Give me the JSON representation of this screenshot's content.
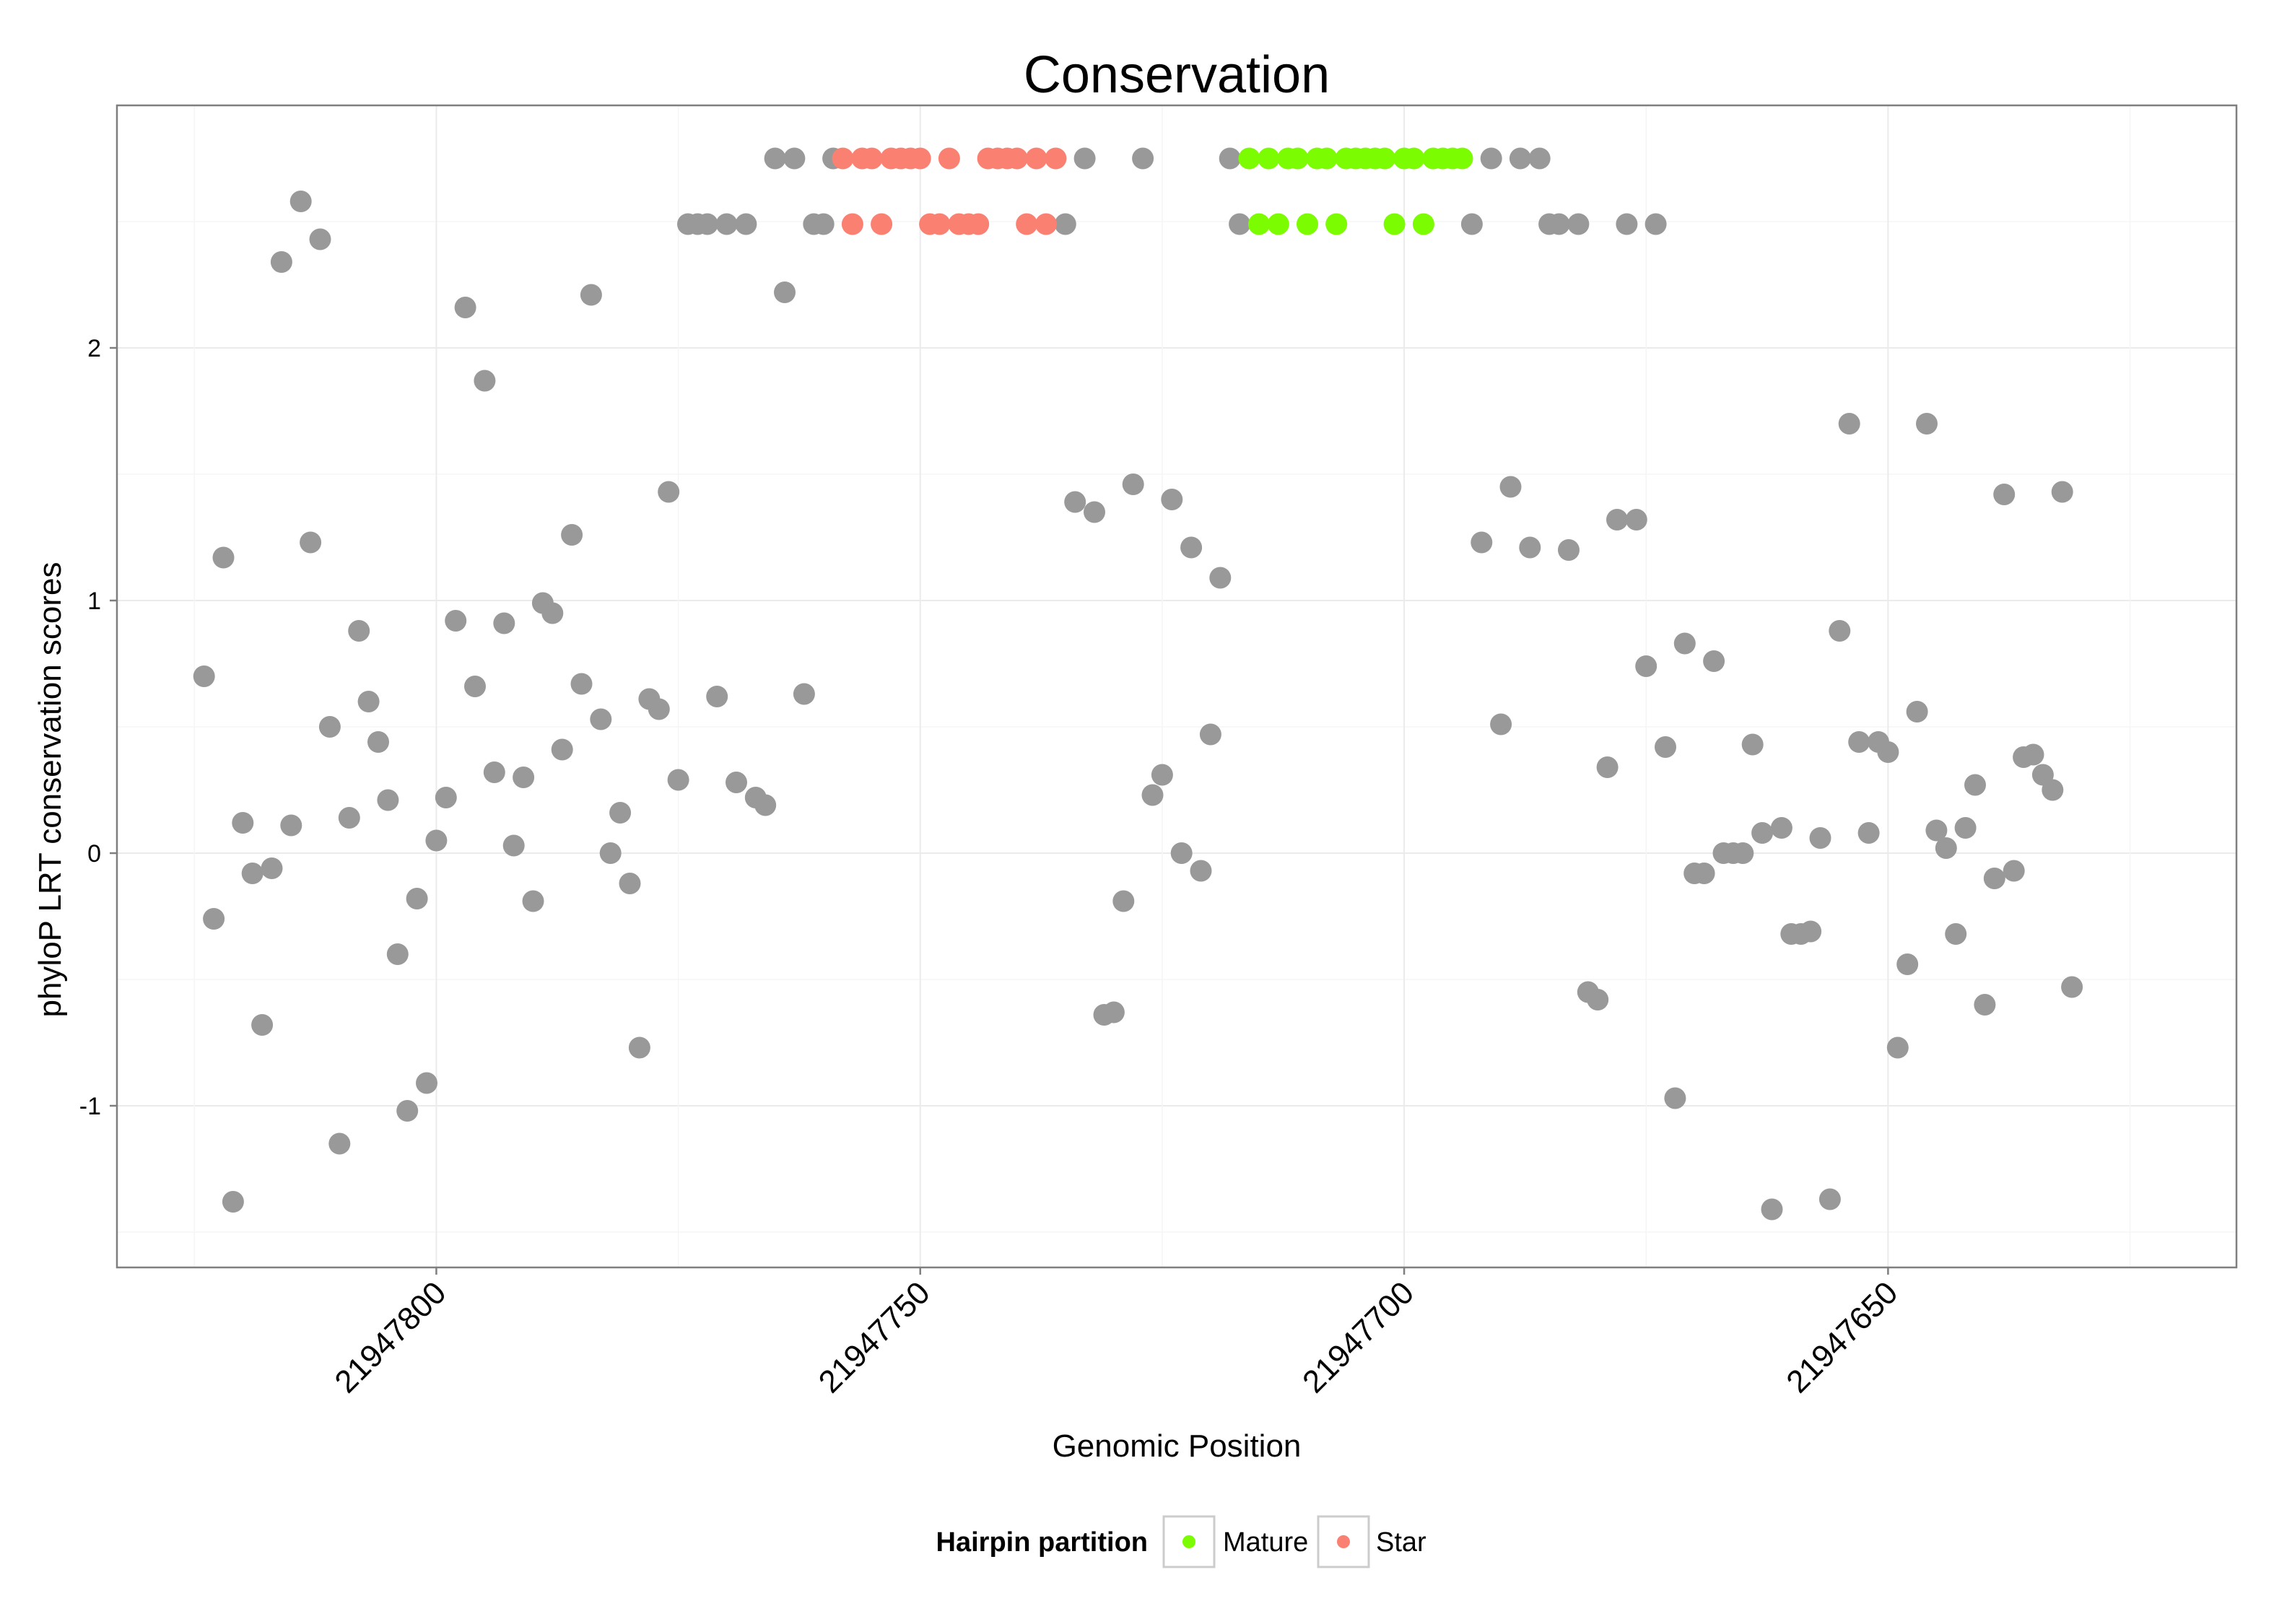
{
  "chart_data": {
    "type": "scatter",
    "title": "Conservation",
    "xlabel": "Genomic Position",
    "ylabel": "phyloP LRT conservation scores",
    "xlim": [
      21947833,
      21947614
    ],
    "ylim": [
      -1.64,
      2.96
    ],
    "x_reversed": true,
    "x_ticks": [
      21947800,
      21947750,
      21947700,
      21947650
    ],
    "x_tick_labels": [
      "21947800",
      "21947750",
      "21947700",
      "21947650"
    ],
    "y_ticks": [
      -1,
      0,
      1,
      2
    ],
    "y_tick_labels": [
      "-1",
      "0",
      "1",
      "2"
    ],
    "grid": true,
    "legend": {
      "title": "Hairpin partition",
      "position": "bottom",
      "entries": [
        {
          "label": "Mature",
          "color": "#7cfc00"
        },
        {
          "label": "Star",
          "color": "#fa8072"
        }
      ]
    },
    "colors": {
      "Other": "#999999",
      "Mature": "#7cfc00",
      "Star": "#fa8072"
    },
    "series": [
      {
        "name": "Other",
        "points": [
          [
            21947824,
            0.7
          ],
          [
            21947823,
            -0.26
          ],
          [
            21947822,
            1.17
          ],
          [
            21947821,
            -1.38
          ],
          [
            21947820,
            0.12
          ],
          [
            21947819,
            -0.08
          ],
          [
            21947818,
            -0.68
          ],
          [
            21947817,
            -0.06
          ],
          [
            21947816,
            2.34
          ],
          [
            21947815,
            0.11
          ],
          [
            21947814,
            2.58
          ],
          [
            21947813,
            1.23
          ],
          [
            21947812,
            2.43
          ],
          [
            21947811,
            0.5
          ],
          [
            21947810,
            -1.15
          ],
          [
            21947809,
            0.14
          ],
          [
            21947808,
            0.88
          ],
          [
            21947807,
            0.6
          ],
          [
            21947806,
            0.44
          ],
          [
            21947805,
            0.21
          ],
          [
            21947804,
            -0.4
          ],
          [
            21947803,
            -1.02
          ],
          [
            21947802,
            -0.18
          ],
          [
            21947801,
            -0.91
          ],
          [
            21947800,
            0.05
          ],
          [
            21947799,
            0.22
          ],
          [
            21947798,
            0.92
          ],
          [
            21947797,
            2.16
          ],
          [
            21947796,
            0.66
          ],
          [
            21947795,
            1.87
          ],
          [
            21947794,
            0.32
          ],
          [
            21947793,
            0.91
          ],
          [
            21947792,
            0.03
          ],
          [
            21947791,
            0.3
          ],
          [
            21947790,
            -0.19
          ],
          [
            21947789,
            0.99
          ],
          [
            21947788,
            0.95
          ],
          [
            21947787,
            0.41
          ],
          [
            21947786,
            1.26
          ],
          [
            21947785,
            0.67
          ],
          [
            21947784,
            2.21
          ],
          [
            21947783,
            0.53
          ],
          [
            21947782,
            0.0
          ],
          [
            21947781,
            0.16
          ],
          [
            21947780,
            -0.12
          ],
          [
            21947779,
            -0.77
          ],
          [
            21947778,
            0.61
          ],
          [
            21947777,
            0.57
          ],
          [
            21947776,
            1.43
          ],
          [
            21947775,
            0.29
          ],
          [
            21947774,
            2.49
          ],
          [
            21947773,
            2.49
          ],
          [
            21947772,
            2.49
          ],
          [
            21947771,
            0.62
          ],
          [
            21947770,
            2.49
          ],
          [
            21947769,
            0.28
          ],
          [
            21947768,
            2.49
          ],
          [
            21947767,
            0.22
          ],
          [
            21947766,
            0.19
          ],
          [
            21947765,
            2.75
          ],
          [
            21947764,
            2.22
          ],
          [
            21947763,
            2.75
          ],
          [
            21947762,
            0.63
          ],
          [
            21947761,
            2.49
          ],
          [
            21947760,
            2.49
          ],
          [
            21947759,
            2.75
          ],
          [
            21947735,
            2.49
          ],
          [
            21947734,
            1.39
          ],
          [
            21947733,
            2.75
          ],
          [
            21947732,
            1.35
          ],
          [
            21947731,
            -0.64
          ],
          [
            21947730,
            -0.63
          ],
          [
            21947729,
            -0.19
          ],
          [
            21947728,
            1.46
          ],
          [
            21947727,
            2.75
          ],
          [
            21947726,
            0.23
          ],
          [
            21947725,
            0.31
          ],
          [
            21947724,
            1.4
          ],
          [
            21947723,
            0.0
          ],
          [
            21947722,
            1.21
          ],
          [
            21947721,
            -0.07
          ],
          [
            21947720,
            0.47
          ],
          [
            21947719,
            1.09
          ],
          [
            21947718,
            2.75
          ],
          [
            21947717,
            2.49
          ],
          [
            21947693,
            2.49
          ],
          [
            21947692,
            1.23
          ],
          [
            21947691,
            2.75
          ],
          [
            21947690,
            0.51
          ],
          [
            21947689,
            1.45
          ],
          [
            21947688,
            2.75
          ],
          [
            21947687,
            1.21
          ],
          [
            21947686,
            2.75
          ],
          [
            21947685,
            2.49
          ],
          [
            21947684,
            2.49
          ],
          [
            21947683,
            1.2
          ],
          [
            21947682,
            2.49
          ],
          [
            21947681,
            -0.55
          ],
          [
            21947680,
            -0.58
          ],
          [
            21947679,
            0.34
          ],
          [
            21947678,
            1.32
          ],
          [
            21947677,
            2.49
          ],
          [
            21947676,
            1.32
          ],
          [
            21947675,
            0.74
          ],
          [
            21947674,
            2.49
          ],
          [
            21947673,
            0.42
          ],
          [
            21947672,
            -0.97
          ],
          [
            21947671,
            0.83
          ],
          [
            21947670,
            -0.08
          ],
          [
            21947669,
            -0.08
          ],
          [
            21947668,
            0.76
          ],
          [
            21947667,
            0.0
          ],
          [
            21947666,
            0.0
          ],
          [
            21947665,
            0.0
          ],
          [
            21947664,
            0.43
          ],
          [
            21947663,
            0.08
          ],
          [
            21947662,
            -1.41
          ],
          [
            21947661,
            0.1
          ],
          [
            21947660,
            -0.32
          ],
          [
            21947659,
            -0.32
          ],
          [
            21947658,
            -0.31
          ],
          [
            21947657,
            0.06
          ],
          [
            21947656,
            -1.37
          ],
          [
            21947655,
            0.88
          ],
          [
            21947654,
            1.7
          ],
          [
            21947653,
            0.44
          ],
          [
            21947652,
            0.08
          ],
          [
            21947651,
            0.44
          ],
          [
            21947650,
            0.4
          ],
          [
            21947649,
            -0.77
          ],
          [
            21947648,
            -0.44
          ],
          [
            21947647,
            0.56
          ],
          [
            21947646,
            1.7
          ],
          [
            21947645,
            0.09
          ],
          [
            21947644,
            0.02
          ],
          [
            21947643,
            -0.32
          ],
          [
            21947642,
            0.1
          ],
          [
            21947641,
            0.27
          ],
          [
            21947640,
            -0.6
          ],
          [
            21947639,
            -0.1
          ],
          [
            21947638,
            1.42
          ],
          [
            21947637,
            -0.07
          ],
          [
            21947636,
            0.38
          ],
          [
            21947635,
            0.39
          ],
          [
            21947634,
            0.31
          ],
          [
            21947633,
            0.25
          ],
          [
            21947632,
            1.43
          ],
          [
            21947631,
            -0.53
          ]
        ]
      },
      {
        "name": "Star",
        "points": [
          [
            21947758,
            2.75
          ],
          [
            21947757,
            2.49
          ],
          [
            21947756,
            2.75
          ],
          [
            21947755,
            2.75
          ],
          [
            21947754,
            2.49
          ],
          [
            21947753,
            2.75
          ],
          [
            21947752,
            2.75
          ],
          [
            21947751,
            2.75
          ],
          [
            21947750,
            2.75
          ],
          [
            21947749,
            2.49
          ],
          [
            21947748,
            2.49
          ],
          [
            21947747,
            2.75
          ],
          [
            21947746,
            2.49
          ],
          [
            21947745,
            2.49
          ],
          [
            21947744,
            2.49
          ],
          [
            21947743,
            2.75
          ],
          [
            21947742,
            2.75
          ],
          [
            21947741,
            2.75
          ],
          [
            21947740,
            2.75
          ],
          [
            21947739,
            2.49
          ],
          [
            21947738,
            2.75
          ],
          [
            21947737,
            2.49
          ],
          [
            21947736,
            2.75
          ]
        ]
      },
      {
        "name": "Mature",
        "points": [
          [
            21947716,
            2.75
          ],
          [
            21947715,
            2.49
          ],
          [
            21947714,
            2.75
          ],
          [
            21947713,
            2.49
          ],
          [
            21947712,
            2.75
          ],
          [
            21947711,
            2.75
          ],
          [
            21947710,
            2.49
          ],
          [
            21947709,
            2.75
          ],
          [
            21947708,
            2.75
          ],
          [
            21947707,
            2.49
          ],
          [
            21947706,
            2.75
          ],
          [
            21947705,
            2.75
          ],
          [
            21947704,
            2.75
          ],
          [
            21947703,
            2.75
          ],
          [
            21947702,
            2.75
          ],
          [
            21947701,
            2.49
          ],
          [
            21947700,
            2.75
          ],
          [
            21947699,
            2.75
          ],
          [
            21947698,
            2.49
          ],
          [
            21947697,
            2.75
          ],
          [
            21947696,
            2.75
          ],
          [
            21947695,
            2.75
          ],
          [
            21947694,
            2.75
          ]
        ]
      }
    ]
  }
}
